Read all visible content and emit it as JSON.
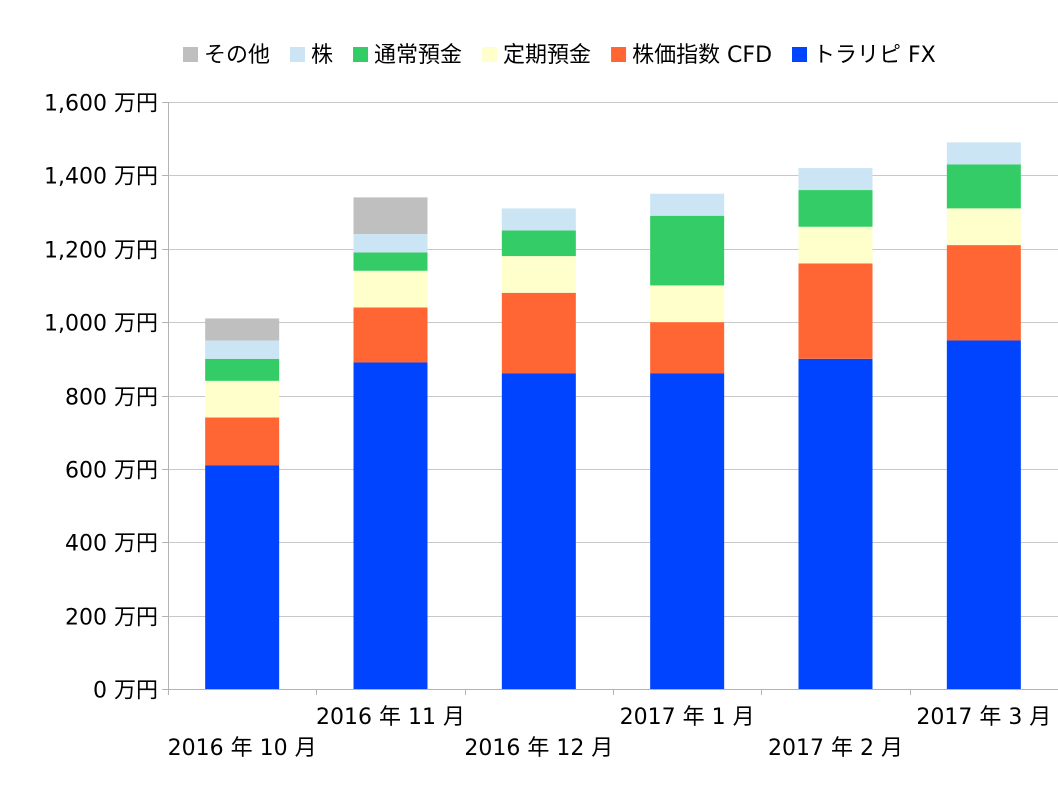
{
  "chart_data": {
    "type": "bar",
    "stacked": true,
    "title": "",
    "xlabel": "",
    "ylabel": "",
    "ylim": [
      0,
      1600
    ],
    "y_ticks": [
      {
        "value": 0,
        "label": "0 万円"
      },
      {
        "value": 200,
        "label": "200 万円"
      },
      {
        "value": 400,
        "label": "400 万円"
      },
      {
        "value": 600,
        "label": "600 万円"
      },
      {
        "value": 800,
        "label": "800 万円"
      },
      {
        "value": 1000,
        "label": "1,000 万円"
      },
      {
        "value": 1200,
        "label": "1,200 万円"
      },
      {
        "value": 1400,
        "label": "1,400 万円"
      },
      {
        "value": 1600,
        "label": "1,600 万円"
      }
    ],
    "grid": true,
    "legend_position": "top",
    "categories": [
      "2016 年 10 月",
      "2016 年 11 月",
      "2016 年 12 月",
      "2017 年 1 月",
      "2017 年 2 月",
      "2017 年 3 月"
    ],
    "series": [
      {
        "name": "トラリピ FX",
        "color": "#0044ff",
        "values": [
          610,
          890,
          860,
          860,
          900,
          950
        ]
      },
      {
        "name": "株価指数 CFD",
        "color": "#ff6633",
        "values": [
          130,
          150,
          220,
          140,
          260,
          260
        ]
      },
      {
        "name": "定期預金",
        "color": "#ffffcc",
        "values": [
          100,
          100,
          100,
          100,
          100,
          100
        ]
      },
      {
        "name": "通常預金",
        "color": "#33cc66",
        "values": [
          60,
          50,
          70,
          190,
          100,
          120
        ]
      },
      {
        "name": "株",
        "color": "#cce5f5",
        "values": [
          50,
          50,
          60,
          60,
          60,
          60
        ]
      },
      {
        "name": "その他",
        "color": "#bfbfbf",
        "values": [
          60,
          100,
          0,
          0,
          0,
          0
        ]
      }
    ],
    "legend_order": [
      "その他",
      "株",
      "通常預金",
      "定期預金",
      "株価指数 CFD",
      "トラリピ FX"
    ]
  }
}
